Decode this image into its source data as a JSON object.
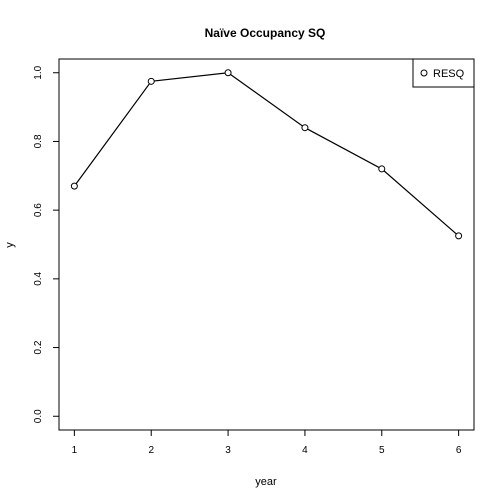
{
  "chart_data": {
    "type": "line",
    "title": "Naïve Occupancy SQ",
    "xlabel": "year",
    "ylabel": "y",
    "x": [
      1,
      2,
      3,
      4,
      5,
      6
    ],
    "x_ticks": [
      "1",
      "2",
      "3",
      "4",
      "5",
      "6"
    ],
    "y_ticks": [
      "0.0",
      "0.2",
      "0.4",
      "0.6",
      "0.8",
      "1.0"
    ],
    "xlim": [
      0.8,
      6.2
    ],
    "ylim": [
      -0.04,
      1.04
    ],
    "grid": false,
    "legend_position": "top-right",
    "series": [
      {
        "name": "RESQ",
        "marker": "open-circle",
        "color": "#000000",
        "values": [
          0.67,
          0.975,
          1.0,
          0.84,
          0.72,
          0.525
        ]
      }
    ]
  }
}
